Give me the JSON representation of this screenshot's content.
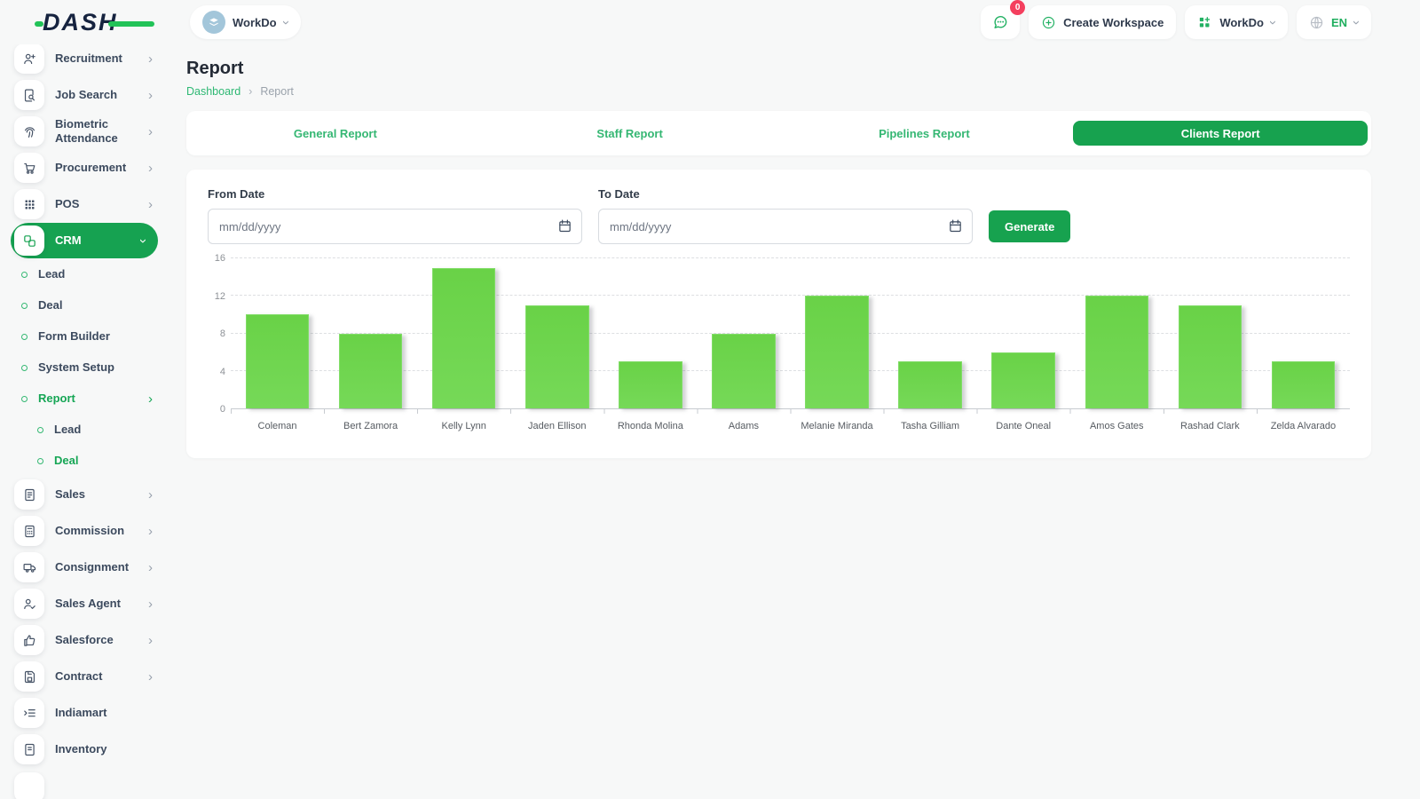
{
  "app": {
    "accent_green": "#17a24f",
    "link_green": "#2eb873",
    "bar_green": "#6fd54d"
  },
  "header": {
    "logo_text": "DASH",
    "workspace_switcher": {
      "label": "WorkDo"
    },
    "messages": {
      "badge": "0"
    },
    "create_workspace_label": "Create Workspace",
    "workdo_menu_label": "WorkDo",
    "language_label": "EN"
  },
  "page": {
    "title": "Report",
    "breadcrumb": {
      "home": "Dashboard",
      "separator": "›",
      "current": "Report"
    }
  },
  "tabs": [
    {
      "label": "General Report",
      "active": false
    },
    {
      "label": "Staff Report",
      "active": false
    },
    {
      "label": "Pipelines Report",
      "active": false
    },
    {
      "label": "Clients Report",
      "active": true
    }
  ],
  "filters": {
    "from_date": {
      "label": "From Date",
      "placeholder": "mm/dd/yyyy",
      "value": ""
    },
    "to_date": {
      "label": "To Date",
      "placeholder": "mm/dd/yyyy",
      "value": ""
    },
    "generate_label": "Generate"
  },
  "chart_data": {
    "type": "bar",
    "categories": [
      "Coleman",
      "Bert Zamora",
      "Kelly Lynn",
      "Jaden Ellison",
      "Rhonda Molina",
      "Adams",
      "Melanie Miranda",
      "Tasha Gilliam",
      "Dante Oneal",
      "Amos Gates",
      "Rashad Clark",
      "Zelda Alvarado"
    ],
    "values": [
      10,
      8,
      15,
      11,
      5,
      8,
      12,
      5,
      6,
      12,
      11,
      5
    ],
    "title": "",
    "xlabel": "",
    "ylabel": "",
    "ylim": [
      0,
      16
    ],
    "yticks": [
      0,
      4,
      8,
      12,
      16
    ],
    "grid": true,
    "legend": "none",
    "bar_color": "#6fd54d"
  },
  "sidebar": {
    "items": [
      {
        "label": "Recruitment",
        "icon": "recruitment-icon",
        "expandable": true
      },
      {
        "label": "Job Search",
        "icon": "job-search-icon",
        "expandable": true
      },
      {
        "label": "Biometric Attendance",
        "icon": "fingerprint-icon",
        "expandable": true
      },
      {
        "label": "Procurement",
        "icon": "procurement-cart-icon",
        "expandable": true
      },
      {
        "label": "POS",
        "icon": "pos-grid-icon",
        "expandable": true
      },
      {
        "label": "CRM",
        "icon": "crm-icon",
        "expandable": true,
        "active": true,
        "children": [
          {
            "label": "Lead"
          },
          {
            "label": "Deal"
          },
          {
            "label": "Form Builder"
          },
          {
            "label": "System Setup"
          },
          {
            "label": "Report",
            "active": true,
            "children": [
              {
                "label": "Lead"
              },
              {
                "label": "Deal",
                "active": true
              }
            ]
          }
        ]
      },
      {
        "label": "Sales",
        "icon": "sales-icon",
        "expandable": true
      },
      {
        "label": "Commission",
        "icon": "commission-icon",
        "expandable": true
      },
      {
        "label": "Consignment",
        "icon": "consignment-truck-icon",
        "expandable": true
      },
      {
        "label": "Sales Agent",
        "icon": "sales-agent-icon",
        "expandable": true
      },
      {
        "label": "Salesforce",
        "icon": "salesforce-icon",
        "expandable": true
      },
      {
        "label": "Contract",
        "icon": "contract-icon",
        "expandable": true
      },
      {
        "label": "Indiamart",
        "icon": "indiamart-icon",
        "expandable": false
      },
      {
        "label": "Inventory",
        "icon": "inventory-icon",
        "expandable": false
      }
    ]
  }
}
